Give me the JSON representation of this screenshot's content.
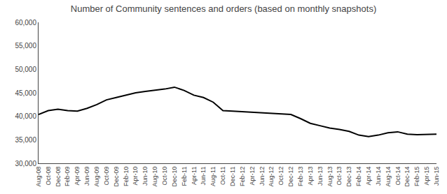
{
  "chart_data": {
    "type": "line",
    "title": "Number of Community sentences and orders (based on monthly snapshots)",
    "categories": [
      "Aug-08",
      "Oct-08",
      "Dec-08",
      "Feb-09",
      "Apr-09",
      "Jun-09",
      "Aug-09",
      "Oct-09",
      "Dec-09",
      "Feb-10",
      "Apr-10",
      "Jun-10",
      "Aug-10",
      "Oct-10",
      "Dec-10",
      "Feb-11",
      "Apr-11",
      "Jun-11",
      "Aug-11",
      "Oct-11",
      "Dec-11",
      "Feb-12",
      "Apr-12",
      "Jun-12",
      "Aug-12",
      "Oct-12",
      "Dec-12",
      "Feb-13",
      "Apr-13",
      "Jun-13",
      "Aug-13",
      "Oct-13",
      "Dec-13",
      "Feb-14",
      "Apr-14",
      "Jun-14",
      "Aug-14",
      "Oct-14",
      "Dec-14",
      "Feb-15",
      "Apr-15",
      "Jun-15"
    ],
    "values": [
      40400,
      41200,
      41500,
      41200,
      41100,
      41700,
      42500,
      43500,
      44000,
      44500,
      45000,
      45300,
      45500,
      45800,
      46200,
      45500,
      44500,
      44000,
      43000,
      41200,
      41100,
      41000,
      40900,
      40700,
      40700,
      40500,
      40400,
      39500,
      38500,
      38000,
      37500,
      37200,
      36800,
      36000,
      35700,
      36000,
      36500,
      36700,
      36200,
      36100,
      36100,
      36200
    ],
    "color": "#000000",
    "ylim": [
      30000,
      60000
    ],
    "yticks": [
      {
        "value": 30000,
        "label": "30,000"
      },
      {
        "value": 35000,
        "label": "35,000"
      },
      {
        "value": 40000,
        "label": "40,000"
      },
      {
        "value": 45000,
        "label": "45,000"
      },
      {
        "value": 50000,
        "label": "50,000"
      },
      {
        "value": 55000,
        "label": "55,000"
      },
      {
        "value": 60000,
        "label": "60,000"
      }
    ],
    "grid": false
  }
}
